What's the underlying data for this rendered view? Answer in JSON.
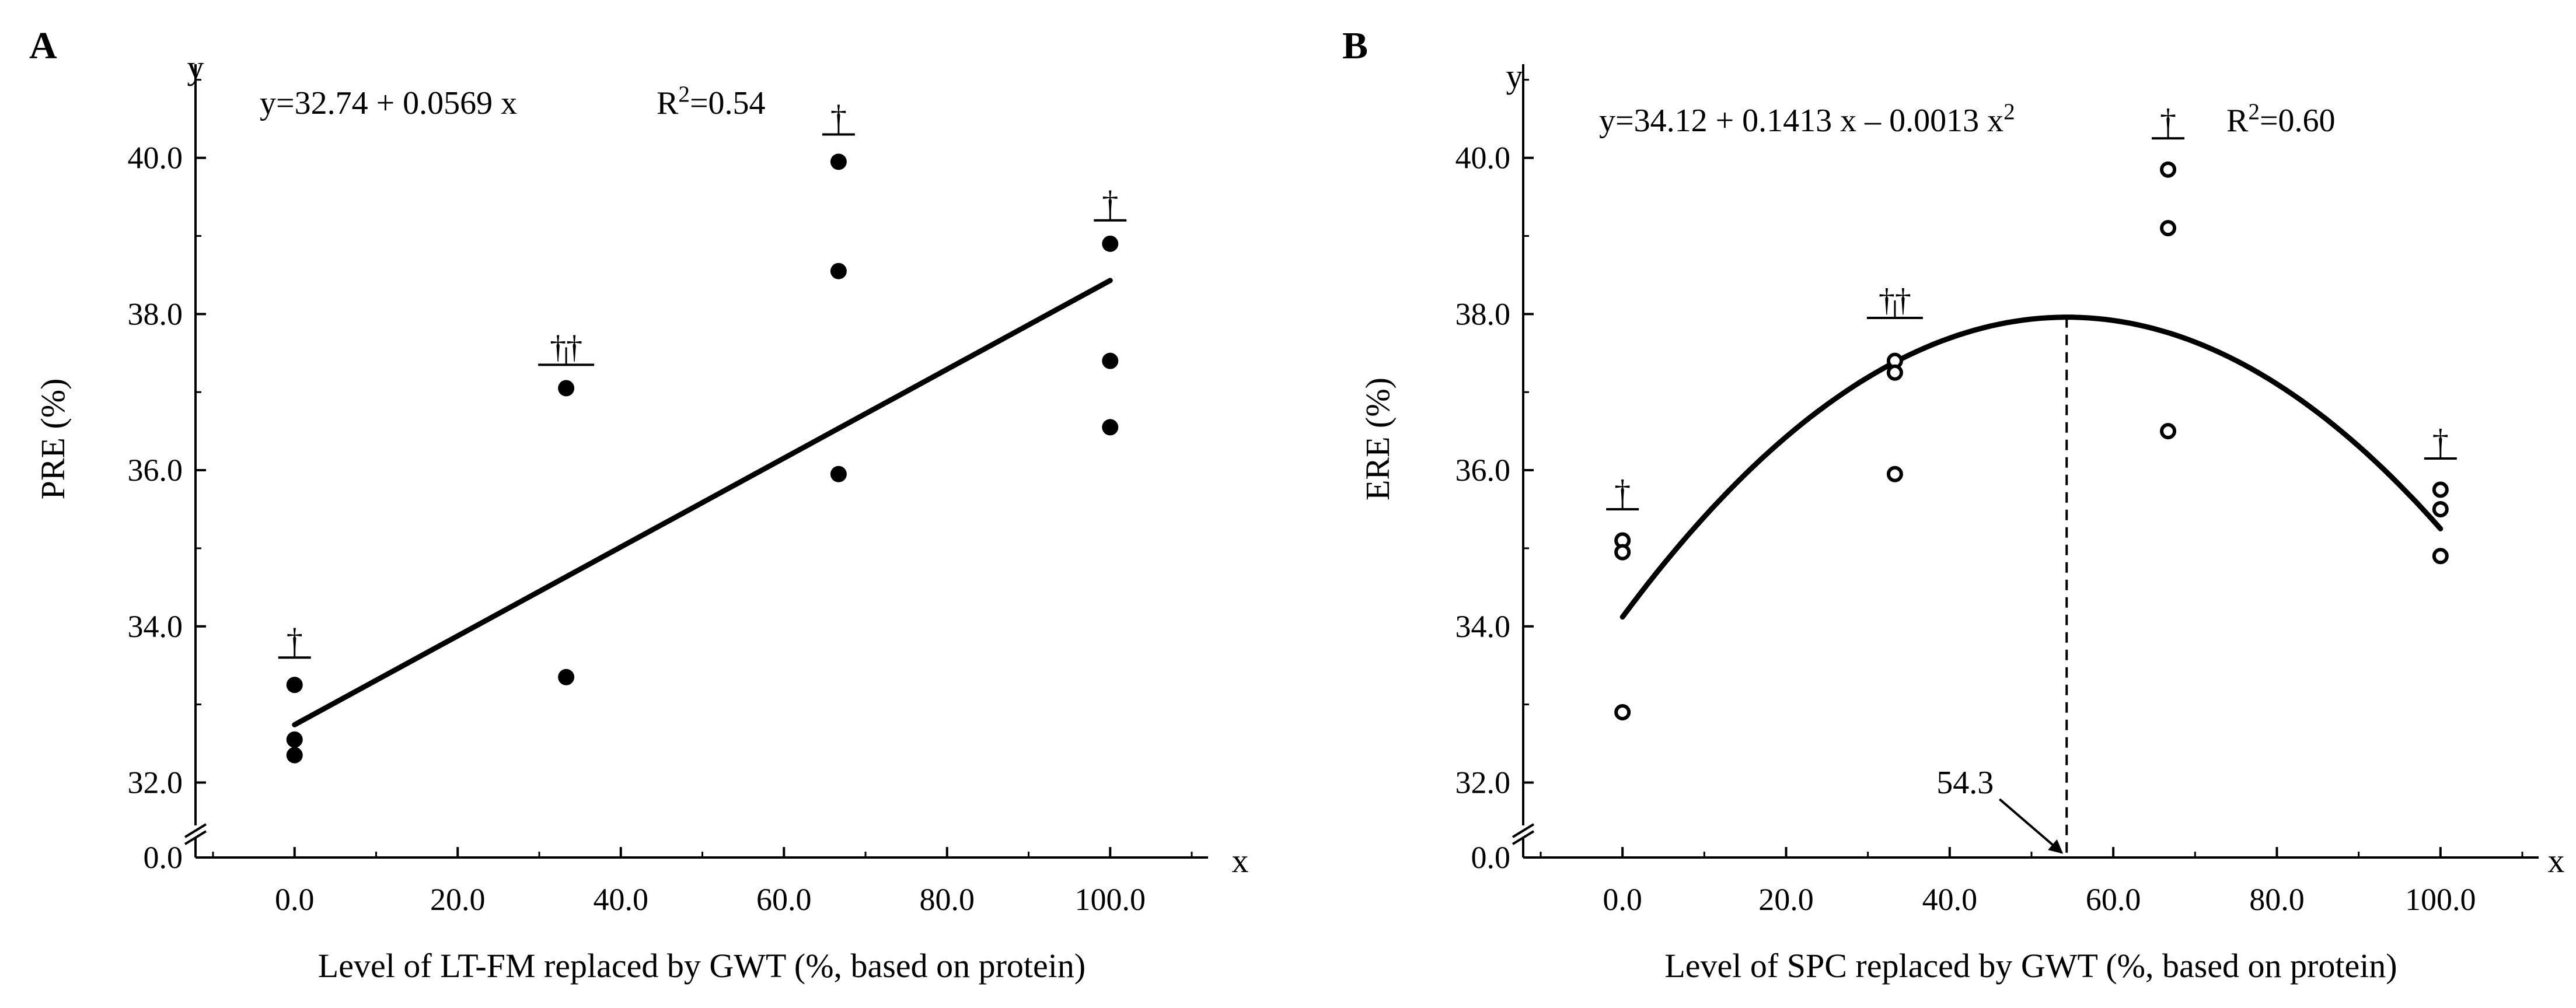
{
  "chart_data": [
    {
      "panel_label": "A",
      "type": "scatter",
      "ylabel": "PRE (%)",
      "xlabel": "Level of LT-FM replaced by GWT (%, based on protein)",
      "x_axis_symbol": "x",
      "y_axis_symbol": "y",
      "equation_text": "y=32.74 + 0.0569 x",
      "r2_text": "R2=0.54",
      "xlim": [
        -10,
        112
      ],
      "xticks": [
        0,
        20,
        40,
        60,
        80,
        100
      ],
      "xtick_labels": [
        "0.0",
        "20.0",
        "40.0",
        "60.0",
        "80.0",
        "100.0"
      ],
      "ylim": [
        31.6,
        41.2
      ],
      "yticks": [
        32,
        34,
        36,
        38,
        40
      ],
      "ytick_labels": [
        "32.0",
        "34.0",
        "36.0",
        "38.0",
        "40.0"
      ],
      "y_zero_label": "0.0",
      "marker": "filled",
      "points": [
        {
          "x": 0,
          "y": 33.25
        },
        {
          "x": 0,
          "y": 32.55
        },
        {
          "x": 0,
          "y": 32.35
        },
        {
          "x": 33.3,
          "y": 37.05
        },
        {
          "x": 33.3,
          "y": 33.35
        },
        {
          "x": 66.7,
          "y": 39.95
        },
        {
          "x": 66.7,
          "y": 38.55
        },
        {
          "x": 66.7,
          "y": 35.95
        },
        {
          "x": 100,
          "y": 38.9
        },
        {
          "x": 100,
          "y": 37.4
        },
        {
          "x": 100,
          "y": 36.55
        }
      ],
      "error_caps": [
        {
          "x": 0,
          "y": 33.6,
          "symbol": "†"
        },
        {
          "x": 33.3,
          "y": 37.35,
          "symbol": "††"
        },
        {
          "x": 66.7,
          "y": 40.3,
          "symbol": "†"
        },
        {
          "x": 100,
          "y": 39.2,
          "symbol": "†"
        }
      ],
      "fit": {
        "type": "linear",
        "intercept": 32.74,
        "slope": 0.0569,
        "x_range": [
          0,
          100
        ]
      }
    },
    {
      "panel_label": "B",
      "type": "scatter",
      "ylabel": "ERE (%)",
      "xlabel": "Level of SPC replaced by GWT (%, based on protein)",
      "x_axis_symbol": "x",
      "y_axis_symbol": "y",
      "equation_text": "y=34.12 + 0.1413 x – 0.0013 x2",
      "r2_text": "R2=0.60",
      "xlim": [
        -10,
        112
      ],
      "xticks": [
        0,
        20,
        40,
        60,
        80,
        100
      ],
      "xtick_labels": [
        "0.0",
        "20.0",
        "40.0",
        "60.0",
        "80.0",
        "100.0"
      ],
      "ylim": [
        31.6,
        41.2
      ],
      "yticks": [
        32,
        34,
        36,
        38,
        40
      ],
      "ytick_labels": [
        "32.0",
        "34.0",
        "36.0",
        "38.0",
        "40.0"
      ],
      "y_zero_label": "0.0",
      "marker": "open",
      "points": [
        {
          "x": 0,
          "y": 35.1
        },
        {
          "x": 0,
          "y": 34.95
        },
        {
          "x": 0,
          "y": 32.9
        },
        {
          "x": 33.3,
          "y": 37.4
        },
        {
          "x": 33.3,
          "y": 37.25
        },
        {
          "x": 33.3,
          "y": 35.95
        },
        {
          "x": 66.7,
          "y": 39.85
        },
        {
          "x": 66.7,
          "y": 39.1
        },
        {
          "x": 66.7,
          "y": 36.5
        },
        {
          "x": 100,
          "y": 35.75
        },
        {
          "x": 100,
          "y": 35.5
        },
        {
          "x": 100,
          "y": 34.9
        }
      ],
      "error_caps": [
        {
          "x": 0,
          "y": 35.5,
          "symbol": "†"
        },
        {
          "x": 33.3,
          "y": 37.95,
          "symbol": "††"
        },
        {
          "x": 66.7,
          "y": 40.25,
          "symbol": "†"
        },
        {
          "x": 100,
          "y": 36.15,
          "symbol": "†"
        }
      ],
      "fit": {
        "type": "quadratic",
        "a": 34.12,
        "b": 0.1413,
        "c": -0.0013,
        "x_range": [
          0,
          100
        ]
      },
      "optimum": {
        "x": 54.3,
        "label": "54.3"
      }
    }
  ]
}
